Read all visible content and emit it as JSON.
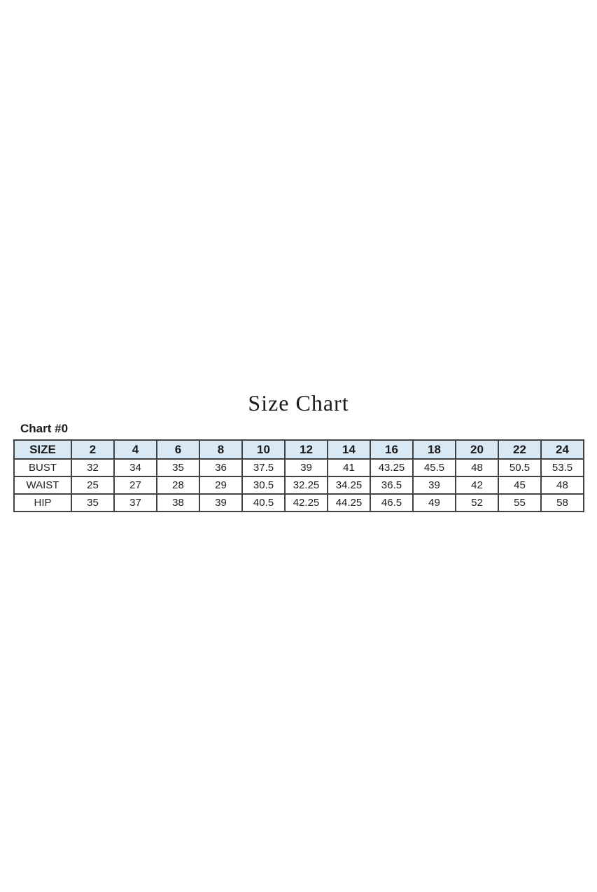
{
  "page": {
    "title": "Size Chart",
    "chart_label": "Chart #0"
  },
  "colors": {
    "header_bg": "#d9e8f5",
    "border": "#424242",
    "text": "#212121"
  },
  "chart_data": {
    "type": "table",
    "title": "Size Chart",
    "subtitle": "Chart #0",
    "columns": [
      "SIZE",
      "2",
      "4",
      "6",
      "8",
      "10",
      "12",
      "14",
      "16",
      "18",
      "20",
      "22",
      "24"
    ],
    "rows": [
      {
        "label": "BUST",
        "values": [
          "32",
          "34",
          "35",
          "36",
          "37.5",
          "39",
          "41",
          "43.25",
          "45.5",
          "48",
          "50.5",
          "53.5"
        ]
      },
      {
        "label": "WAIST",
        "values": [
          "25",
          "27",
          "28",
          "29",
          "30.5",
          "32.25",
          "34.25",
          "36.5",
          "39",
          "42",
          "45",
          "48"
        ]
      },
      {
        "label": "HIP",
        "values": [
          "35",
          "37",
          "38",
          "39",
          "40.5",
          "42.25",
          "44.25",
          "46.5",
          "49",
          "52",
          "55",
          "58"
        ]
      }
    ]
  }
}
